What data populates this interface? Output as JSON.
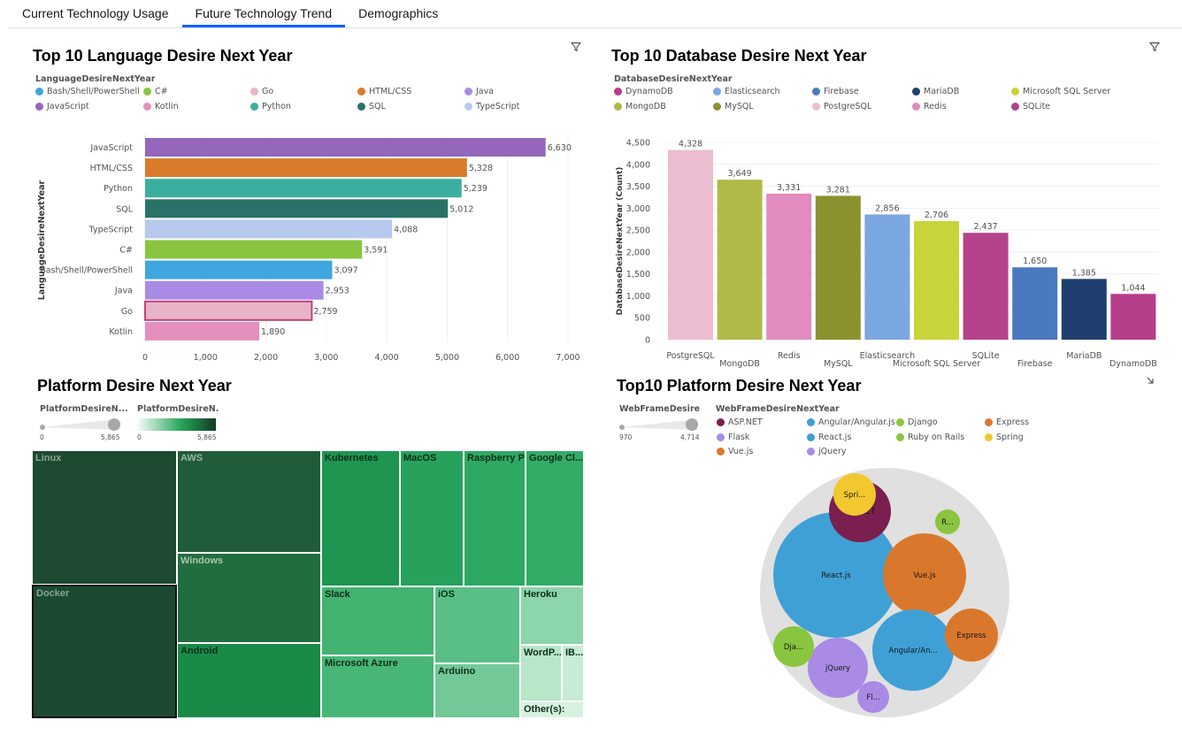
{
  "tabs": [
    {
      "label": "Current Technology Usage",
      "active": false
    },
    {
      "label": "Future Technology Trend",
      "active": true
    },
    {
      "label": "Demographics",
      "active": false
    }
  ],
  "accent": "#0f62fe",
  "lang_panel": {
    "title": "Top 10 Language Desire Next Year",
    "legend_title": "LanguageDesireNextYear",
    "legend": [
      {
        "name": "Bash/Shell/PowerShell",
        "color": "#3fa6e0"
      },
      {
        "name": "C#",
        "color": "#8ac53f"
      },
      {
        "name": "Go",
        "color": "#e8b4c8"
      },
      {
        "name": "HTML/CSS",
        "color": "#d97b2b"
      },
      {
        "name": "Java",
        "color": "#a98be6"
      },
      {
        "name": "JavaScript",
        "color": "#9467bd"
      },
      {
        "name": "Kotlin",
        "color": "#e48fbe"
      },
      {
        "name": "Python",
        "color": "#3aafa0"
      },
      {
        "name": "SQL",
        "color": "#2a7268"
      },
      {
        "name": "TypeScript",
        "color": "#b8c9ef"
      }
    ]
  },
  "db_panel": {
    "title": "Top 10 Database Desire Next Year",
    "legend_title": "DatabaseDesireNextYear",
    "legend": [
      {
        "name": "DynamoDB",
        "color": "#b63d8a"
      },
      {
        "name": "Elasticsearch",
        "color": "#7ba7e0"
      },
      {
        "name": "Firebase",
        "color": "#4a79bf"
      },
      {
        "name": "MariaDB",
        "color": "#1f3f6e"
      },
      {
        "name": "Microsoft SQL Server",
        "color": "#c9d43a"
      },
      {
        "name": "MongoDB",
        "color": "#b1ba48"
      },
      {
        "name": "MySQL",
        "color": "#8c9130"
      },
      {
        "name": "PostgreSQL",
        "color": "#ecbdd0"
      },
      {
        "name": "Redis",
        "color": "#e28bbe"
      },
      {
        "name": "SQLite",
        "color": "#b5428b"
      }
    ]
  },
  "platform_panel": {
    "title": "Platform Desire Next Year",
    "slider1_label": "PlatformDesireN...",
    "slider2_label": "PlatformDesireN...",
    "slider_min": "0",
    "slider_max": "5,865"
  },
  "web_panel": {
    "title": "Top10 Platform Desire Next Year",
    "slider_label": "WebFrameDesire...",
    "slider_min": "970",
    "slider_max": "4,714",
    "legend_title": "WebFrameDesireNextYear",
    "legend": [
      {
        "name": "ASP.NET",
        "color": "#7a1f4f"
      },
      {
        "name": "Angular/Angular.js",
        "color": "#3fa0d6"
      },
      {
        "name": "Django",
        "color": "#8ac53f"
      },
      {
        "name": "Express",
        "color": "#d9782c"
      },
      {
        "name": "Flask",
        "color": "#a98be6"
      },
      {
        "name": "React.js",
        "color": "#3fa0d6"
      },
      {
        "name": "Ruby on Rails",
        "color": "#8ac53f"
      },
      {
        "name": "Spring",
        "color": "#f2c82e"
      },
      {
        "name": "Vue.js",
        "color": "#d9782c"
      },
      {
        "name": "jQuery",
        "color": "#a98be6"
      }
    ]
  },
  "chart_data": [
    {
      "type": "bar",
      "orientation": "horizontal",
      "title": "Top 10 Language Desire Next Year",
      "ylabel": "LanguageDesireNextYear",
      "categories": [
        "JavaScript",
        "HTML/CSS",
        "Python",
        "SQL",
        "TypeScript",
        "C#",
        "Bash/Shell/PowerShell",
        "Java",
        "Go",
        "Kotlin"
      ],
      "values": [
        6630,
        5328,
        5239,
        5012,
        4088,
        3591,
        3097,
        2953,
        2759,
        1890
      ],
      "data_labels": [
        "6,630",
        "5,328",
        "5,239",
        "5,012",
        "4,088",
        "3,591",
        "3,097",
        "2,953",
        "2,759",
        "1,890"
      ],
      "colors": [
        "#9467bd",
        "#d97b2b",
        "#3aafa0",
        "#2a7268",
        "#b8c9ef",
        "#8ac53f",
        "#3fa6e0",
        "#a98be6",
        "#e8b4c8",
        "#e48fbe"
      ],
      "xlim": [
        0,
        7000
      ],
      "xticks": [
        "0",
        "1,000",
        "2,000",
        "3,000",
        "4,000",
        "5,000",
        "6,000",
        "7,000"
      ],
      "highlighted": "Go"
    },
    {
      "type": "bar",
      "orientation": "vertical",
      "title": "Top 10 Database Desire Next Year",
      "ylabel": "DatabaseDesireNextYear (Count)",
      "categories": [
        "PostgreSQL",
        "MongoDB",
        "Redis",
        "MySQL",
        "Elasticsearch",
        "Microsoft SQL Server",
        "SQLite",
        "Firebase",
        "MariaDB",
        "DynamoDB"
      ],
      "values": [
        4328,
        3649,
        3331,
        3281,
        2856,
        2706,
        2437,
        1650,
        1385,
        1044
      ],
      "data_labels": [
        "4,328",
        "3,649",
        "3,331",
        "3,281",
        "2,856",
        "2,706",
        "2,437",
        "1,650",
        "1,385",
        "1,044"
      ],
      "colors": [
        "#ecbdd0",
        "#b1ba48",
        "#e28bbe",
        "#8c9130",
        "#7ba7e0",
        "#c9d43a",
        "#b5428b",
        "#4a79bf",
        "#1f3f6e",
        "#b63d8a"
      ],
      "ylim": [
        0,
        4500
      ],
      "yticks": [
        "0",
        "500",
        "1,000",
        "1,500",
        "2,000",
        "2,500",
        "3,000",
        "3,500",
        "4,000",
        "4,500"
      ]
    },
    {
      "type": "treemap",
      "title": "Platform Desire Next Year",
      "items": [
        {
          "name": "Linux",
          "color": "#1d4a30",
          "tcolor": "#8aa592"
        },
        {
          "name": "Docker",
          "color": "#1b4a31",
          "tcolor": "#8aa592"
        },
        {
          "name": "AWS",
          "color": "#205c39",
          "tcolor": "#9ab6a1"
        },
        {
          "name": "Windows",
          "color": "#226d3f",
          "tcolor": "#a7c6ae"
        },
        {
          "name": "Android",
          "color": "#1a8a48",
          "tcolor": "#0d2d19"
        },
        {
          "name": "Kubernetes",
          "color": "#1e9652",
          "tcolor": "#0d2d19"
        },
        {
          "name": "MacOS",
          "color": "#27a25c",
          "tcolor": "#0d2d19"
        },
        {
          "name": "Raspberry Pi",
          "color": "#2da963",
          "tcolor": "#0d2d19"
        },
        {
          "name": "Google Cl...",
          "color": "#33ac67",
          "tcolor": "#0d2d19"
        },
        {
          "name": "Slack",
          "color": "#42b371",
          "tcolor": "#0d2d19"
        },
        {
          "name": "Microsoft Azure",
          "color": "#48b677",
          "tcolor": "#0d2d19"
        },
        {
          "name": "iOS",
          "color": "#5abf86",
          "tcolor": "#0d2d19"
        },
        {
          "name": "Arduino",
          "color": "#72c997",
          "tcolor": "#0d2d19"
        },
        {
          "name": "Heroku",
          "color": "#8dd5aa",
          "tcolor": "#0d2d19"
        },
        {
          "name": "WordP...",
          "color": "#b7e6c8",
          "tcolor": "#0d2d19"
        },
        {
          "name": "IB...",
          "color": "#c6ecd4",
          "tcolor": "#0d2d19"
        },
        {
          "name": "Other(s):",
          "color": "#d7f2df",
          "tcolor": "#0d2d19"
        }
      ]
    },
    {
      "type": "bubble",
      "title": "Top10 Platform Desire Next Year",
      "items": [
        {
          "name": "React.js",
          "label": "React.js",
          "color": "#3fa0d6"
        },
        {
          "name": "Vue.js",
          "label": "Vue.js",
          "color": "#d9782c"
        },
        {
          "name": "Angular/Angular.js",
          "label": "Angular/An...",
          "color": "#3fa0d6"
        },
        {
          "name": "ASP.NET",
          "label": "ASP.NET",
          "color": "#7a1f4f"
        },
        {
          "name": "Express",
          "label": "Express",
          "color": "#d9782c"
        },
        {
          "name": "jQuery",
          "label": "jQuery",
          "color": "#a98be6"
        },
        {
          "name": "Spring",
          "label": "Spri...",
          "color": "#f2c82e"
        },
        {
          "name": "Django",
          "label": "Dja...",
          "color": "#8ac53f"
        },
        {
          "name": "Flask",
          "label": "Fl...",
          "color": "#a98be6"
        },
        {
          "name": "Ruby on Rails",
          "label": "R...",
          "color": "#8ac53f"
        }
      ]
    }
  ]
}
